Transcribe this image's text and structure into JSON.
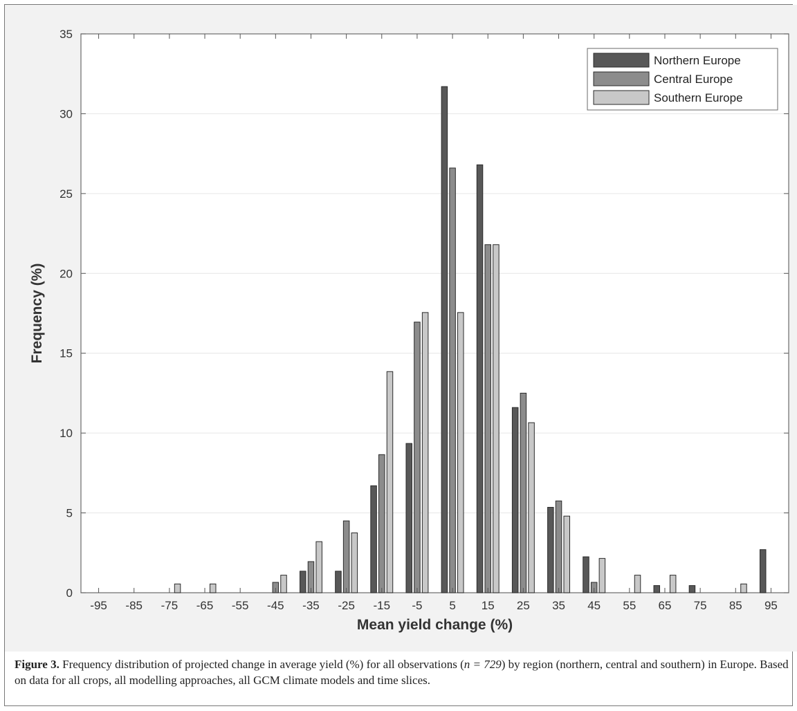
{
  "chart_data": {
    "type": "bar",
    "xlabel": "Mean yield change (%)",
    "ylabel": "Frequency (%)",
    "ylim": [
      0,
      35
    ],
    "yticks": [
      0,
      5,
      10,
      15,
      20,
      25,
      30,
      35
    ],
    "grid": true,
    "legend_position": "top-right",
    "categories": [
      "-95",
      "-85",
      "-75",
      "-65",
      "-55",
      "-45",
      "-35",
      "-25",
      "-15",
      "-5",
      "5",
      "15",
      "25",
      "35",
      "45",
      "55",
      "65",
      "75",
      "85",
      "95"
    ],
    "series": [
      {
        "name": "Northern Europe",
        "color": "#585858",
        "values": [
          0,
          0,
          0,
          0,
          0,
          0,
          1.35,
          1.35,
          6.7,
          9.35,
          31.7,
          26.8,
          11.6,
          5.35,
          2.25,
          0,
          0.45,
          0.45,
          0,
          2.7
        ]
      },
      {
        "name": "Central Europe",
        "color": "#8c8c8c",
        "values": [
          0,
          0,
          0,
          0,
          0,
          0.65,
          1.95,
          4.5,
          8.65,
          16.95,
          26.6,
          21.8,
          12.5,
          5.75,
          0.65,
          0,
          0,
          0,
          0,
          0
        ]
      },
      {
        "name": "Southern Europe",
        "color": "#c8c8c8",
        "values": [
          0,
          0,
          0.55,
          0.55,
          0,
          1.1,
          3.2,
          3.75,
          13.85,
          17.55,
          17.55,
          21.8,
          10.65,
          4.8,
          2.15,
          1.1,
          1.1,
          0,
          0.55,
          0
        ]
      }
    ]
  },
  "caption": {
    "label": "Figure 3.",
    "text_before_n": " Frequency distribution of projected change in average yield (%) for all observations (",
    "n_expr": "n = 729",
    "text_after_n": ") by region (northern, central and southern) in Europe. Based on data for all crops, all modelling approaches, all GCM climate models and time slices."
  }
}
